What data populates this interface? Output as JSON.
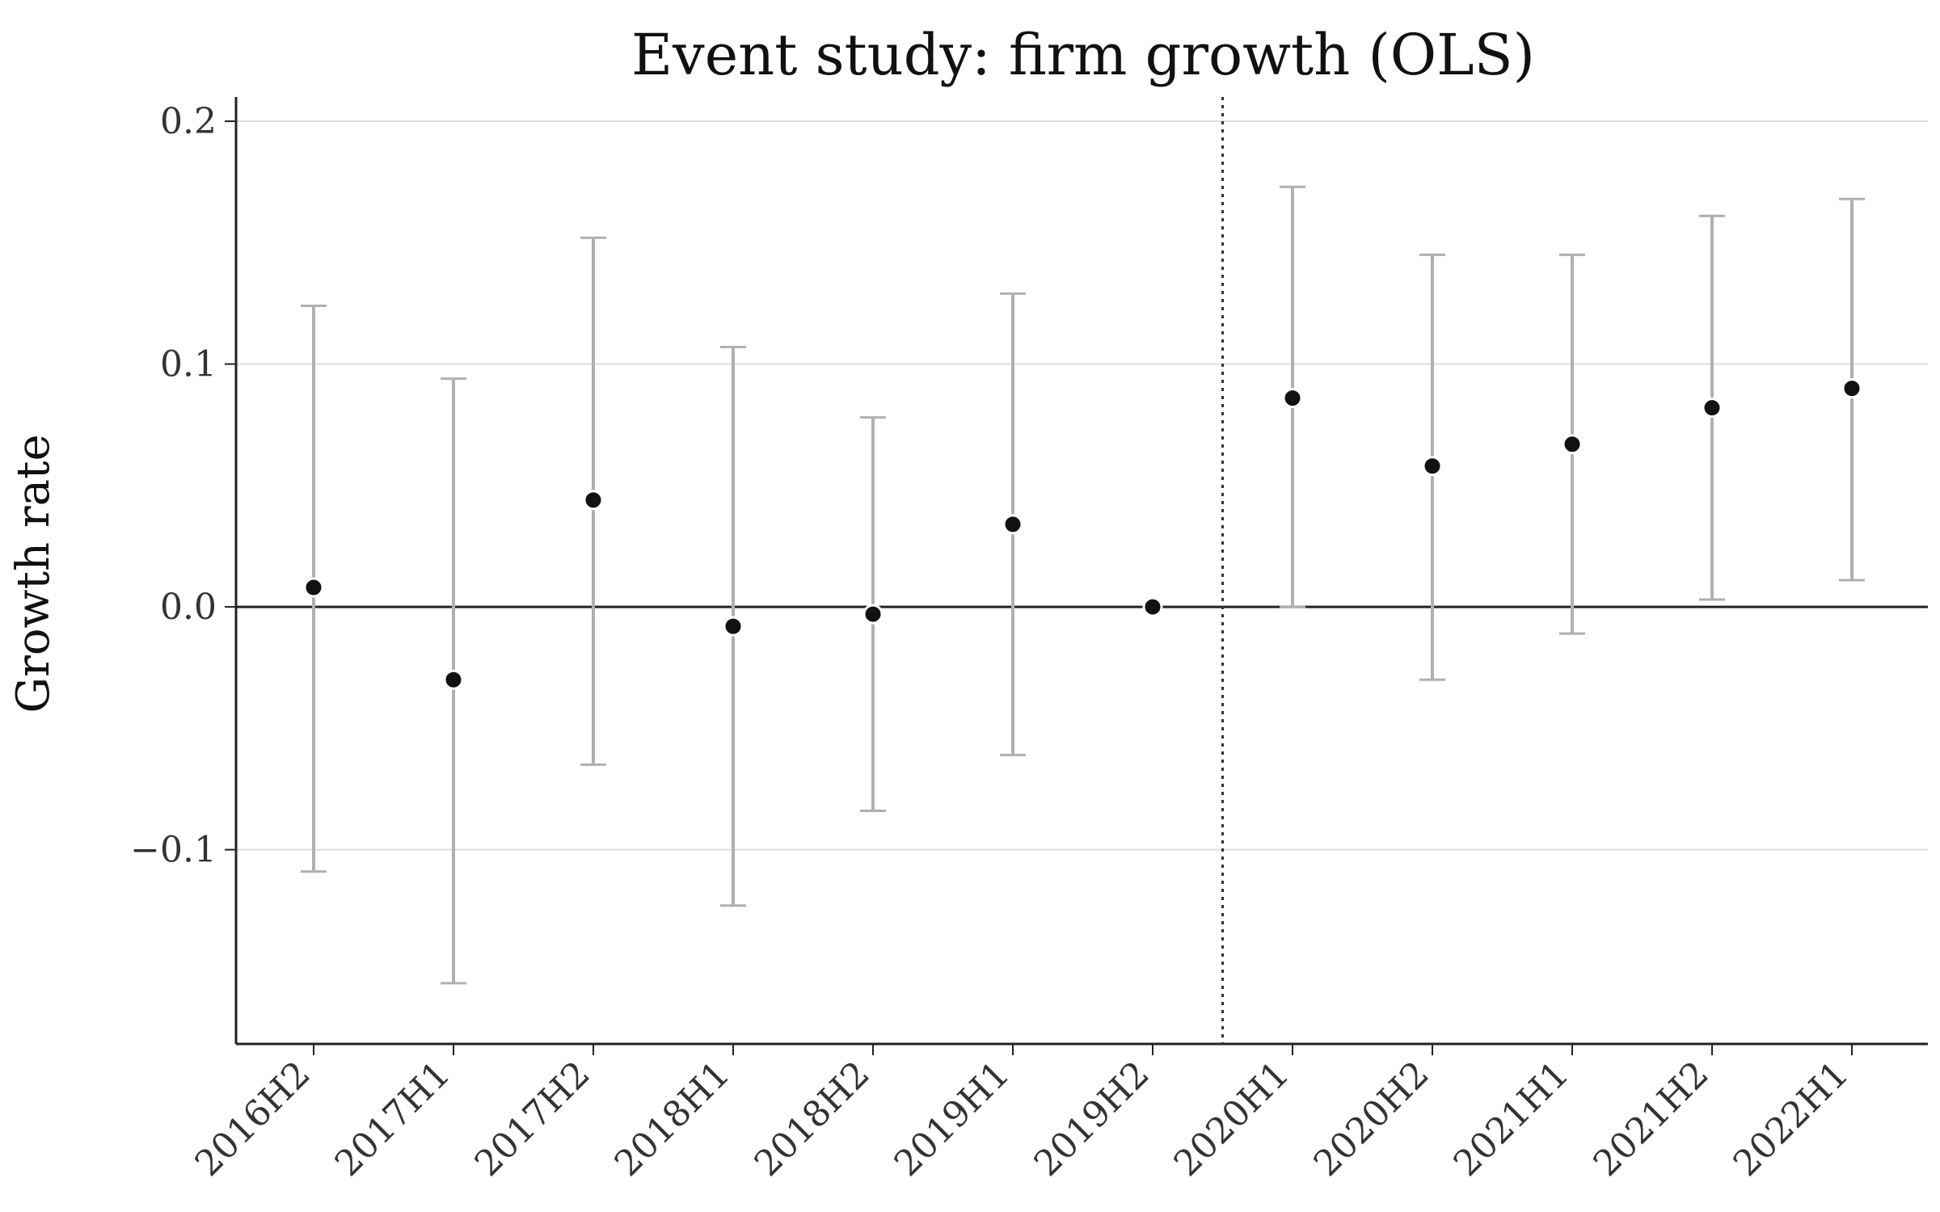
{
  "chart_data": {
    "type": "scatter",
    "title": "Event study: firm growth (OLS)",
    "xlabel": "",
    "ylabel": "Growth rate",
    "categories": [
      "2016H2",
      "2017H1",
      "2017H2",
      "2018H1",
      "2018H2",
      "2019H1",
      "2019H2",
      "2020H1",
      "2020H2",
      "2021H1",
      "2021H2",
      "2022H1"
    ],
    "series": [
      {
        "values": [
          0.008,
          -0.03,
          0.044,
          -0.008,
          -0.003,
          0.034,
          0.0,
          0.086,
          0.058,
          0.067,
          0.082,
          0.09
        ],
        "ci_lower": [
          -0.109,
          -0.155,
          -0.065,
          -0.123,
          -0.084,
          -0.061,
          0.0,
          0.0,
          -0.03,
          -0.011,
          0.003,
          0.011
        ],
        "ci_upper": [
          0.124,
          0.094,
          0.152,
          0.107,
          0.078,
          0.129,
          0.0,
          0.173,
          0.145,
          0.145,
          0.161,
          0.168
        ]
      }
    ],
    "ylim": [
      -0.18,
      0.21
    ],
    "yticks": [
      -0.1,
      0.0,
      0.1,
      0.2
    ],
    "ytick_labels": [
      "−0.1",
      "0.0",
      "0.1",
      "0.2"
    ],
    "reference_line_y": 0.0,
    "event_line_between": [
      "2019H2",
      "2020H1"
    ],
    "grid": "horizontal",
    "legend": "none",
    "colors": {
      "point": "#111111",
      "errorbar": "#b0b0b0",
      "axis": "#222222",
      "grid": "#dddddd",
      "event_line": "#333333"
    }
  }
}
